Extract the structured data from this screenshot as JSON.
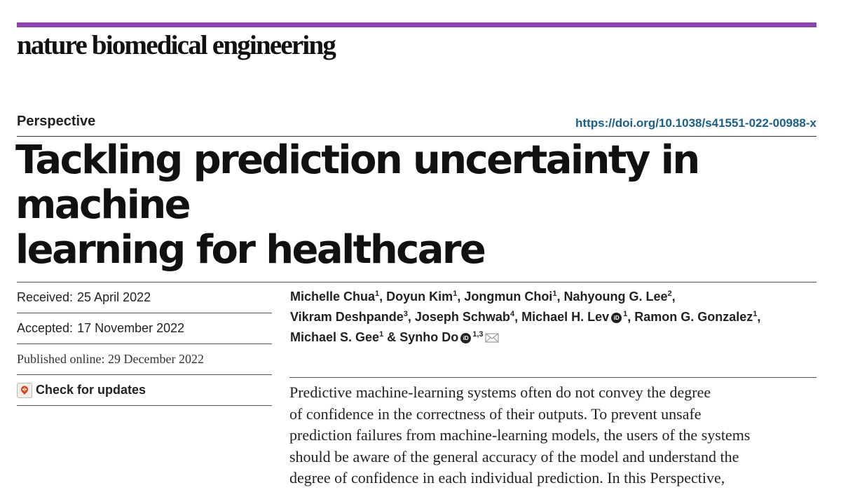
{
  "journal": {
    "name": "nature biomedical engineering",
    "brand_color": "#8e44ad"
  },
  "article": {
    "type": "Perspective",
    "doi": "https://doi.org/10.1038/s41551-022-00988-x",
    "title_line1": "Tackling prediction uncertainty in machine",
    "title_line2": "learning for healthcare"
  },
  "dates": {
    "received_label": "Received:",
    "received": "25 April 2022",
    "accepted_label": "Accepted:",
    "accepted": "17 November 2022",
    "published": "Published online: 29 December 2022",
    "check_updates": "Check for updates"
  },
  "authors": [
    {
      "name": "Michelle Chua",
      "aff": "1",
      "orcid": false
    },
    {
      "name": "Doyun Kim",
      "aff": "1",
      "orcid": false
    },
    {
      "name": "Jongmun Choi",
      "aff": "1",
      "orcid": false
    },
    {
      "name": "Nahyoung G. Lee",
      "aff": "2",
      "orcid": false
    },
    {
      "name": "Vikram Deshpande",
      "aff": "3",
      "orcid": false
    },
    {
      "name": "Joseph Schwab",
      "aff": "4",
      "orcid": false
    },
    {
      "name": "Michael H. Lev",
      "aff": "1",
      "orcid": true
    },
    {
      "name": "Ramon G. Gonzalez",
      "aff": "1",
      "orcid": false
    },
    {
      "name": "Michael S. Gee",
      "aff": "1",
      "orcid": false
    },
    {
      "name": "Synho Do",
      "aff": "1,3",
      "orcid": true
    }
  ],
  "author_separators": {
    "comma": ", ",
    "last": " & "
  },
  "icons": {
    "orcid": "orcid-icon",
    "mail": "mail-icon",
    "updates": "check-for-updates-icon"
  },
  "abstract": {
    "lines": [
      "Predictive machine-learning systems often do not convey the degree",
      "of confidence in the correctness of their outputs. To prevent unsafe",
      "prediction failures from machine-learning models, the users of the systems",
      "should be aware of the general accuracy of the model and understand the",
      "degree of confidence in each individual prediction. In this Perspective,"
    ]
  }
}
